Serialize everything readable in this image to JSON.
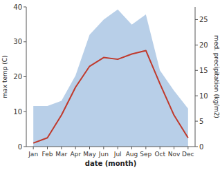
{
  "chart_data": {
    "type": "line",
    "xlabel": "date (month)",
    "ylabel": "max temp (C)",
    "y2label": "med. precipitation (kg/m2)",
    "categories": [
      "Jan",
      "Feb",
      "Mar",
      "Apr",
      "May",
      "Jun",
      "Jul",
      "Aug",
      "Sep",
      "Oct",
      "Nov",
      "Dec"
    ],
    "series": [
      {
        "type": "area",
        "axis": "y2",
        "color": "#b8cfe8",
        "values": [
          8.0,
          8.0,
          9.0,
          14.0,
          22.0,
          25.0,
          27.0,
          24.0,
          26.0,
          15.0,
          11.0,
          7.5
        ]
      },
      {
        "type": "line",
        "color": "#c0392b",
        "values": [
          1.0,
          2.5,
          9.0,
          17.0,
          23.0,
          25.5,
          25.0,
          26.5,
          27.5,
          18.0,
          9.0,
          2.5
        ]
      }
    ],
    "ylim": [
      0,
      40
    ],
    "yticks": [
      0,
      10,
      20,
      30,
      40
    ],
    "y2lim": [
      0,
      27.5
    ],
    "y2ticks": [
      0,
      5,
      10,
      15,
      20,
      25
    ],
    "grid": false
  }
}
